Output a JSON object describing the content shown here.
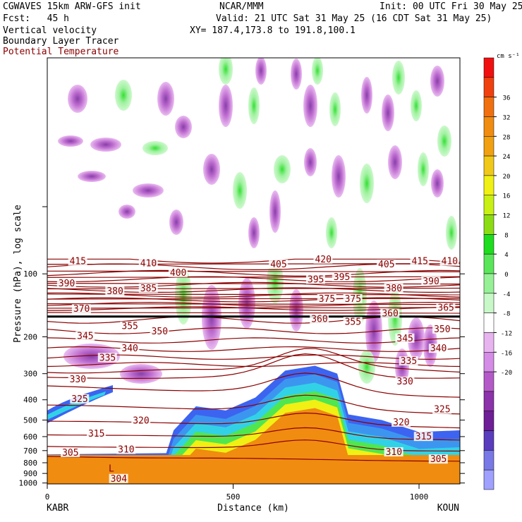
{
  "header": {
    "line1_left": "CGWAVES 15km ARW-GFS init",
    "line1_center": "NCAR/MMM",
    "line1_right": "Init: 00 UTC Fri 30 May 25",
    "line2_left": "Fcst:   45 h",
    "line2_right": "Valid: 21 UTC Sat 31 May 25 (16 CDT Sat 31 May 25)",
    "line3_left": "Vertical velocity",
    "line3_right": "XY= 187.4,173.8 to 191.8,100.1",
    "line4_left": "Boundary Layer Tracer",
    "line5_left": "Potential Temperature"
  },
  "colorbar": {
    "unit": "cm s⁻¹",
    "ticks": [
      "36",
      "32",
      "28",
      "24",
      "20",
      "16",
      "12",
      "8",
      "4",
      "0",
      "-4",
      "-8",
      "-12",
      "-16",
      "-20"
    ],
    "colors": [
      "#f01010",
      "#f04010",
      "#f07010",
      "#f08c10",
      "#f0a010",
      "#f0c818",
      "#f0f014",
      "#c8f014",
      "#8cdc14",
      "#1edc1e",
      "#5ae65a",
      "#96f096",
      "#c8f8c8",
      "#ffffff",
      "#e8b4f0",
      "#d48ce6",
      "#b45ac8",
      "#8c32aa",
      "#6e1e96",
      "#5a3cbe",
      "#7878e6",
      "#a0a0ff"
    ]
  },
  "chart_data": {
    "type": "heatmap",
    "title": "Vertical velocity / Boundary Layer Tracer / Potential Temperature",
    "xlabel": "Distance (km)",
    "ylabel": "Pressure (hPa), log scale",
    "x_ticks": [
      "0",
      "500",
      "1000"
    ],
    "xlim": [
      0,
      1110
    ],
    "y_ticks": [
      "100",
      "200",
      "300",
      "400",
      "500",
      "600",
      "700",
      "800",
      "900",
      "1000"
    ],
    "y_scale": "log",
    "endpoints": {
      "left": "KABR",
      "right": "KOUN"
    },
    "isentrope_labels": [
      {
        "v": "415",
        "x": 60,
        "p": 90
      },
      {
        "v": "410",
        "x": 250,
        "p": 92
      },
      {
        "v": "405",
        "x": 600,
        "p": 93
      },
      {
        "v": "420",
        "x": 720,
        "p": 88
      },
      {
        "v": "405",
        "x": 890,
        "p": 93
      },
      {
        "v": "415",
        "x": 980,
        "p": 90
      },
      {
        "v": "410",
        "x": 1060,
        "p": 90
      },
      {
        "v": "390",
        "x": 30,
        "p": 115
      },
      {
        "v": "400",
        "x": 330,
        "p": 102
      },
      {
        "v": "395",
        "x": 700,
        "p": 110
      },
      {
        "v": "395",
        "x": 770,
        "p": 107
      },
      {
        "v": "390",
        "x": 1010,
        "p": 112
      },
      {
        "v": "380",
        "x": 160,
        "p": 125
      },
      {
        "v": "385",
        "x": 250,
        "p": 121
      },
      {
        "v": "380",
        "x": 910,
        "p": 121
      },
      {
        "v": "370",
        "x": 70,
        "p": 152
      },
      {
        "v": "365",
        "x": 1050,
        "p": 150
      },
      {
        "v": "375",
        "x": 730,
        "p": 136
      },
      {
        "v": "375",
        "x": 800,
        "p": 136
      },
      {
        "v": "355",
        "x": 200,
        "p": 184
      },
      {
        "v": "350",
        "x": 280,
        "p": 195
      },
      {
        "v": "360",
        "x": 710,
        "p": 170
      },
      {
        "v": "355",
        "x": 800,
        "p": 175
      },
      {
        "v": "360",
        "x": 900,
        "p": 160
      },
      {
        "v": "350",
        "x": 1040,
        "p": 190
      },
      {
        "v": "345",
        "x": 80,
        "p": 205
      },
      {
        "v": "340",
        "x": 200,
        "p": 235
      },
      {
        "v": "345",
        "x": 940,
        "p": 210
      },
      {
        "v": "340",
        "x": 1030,
        "p": 235
      },
      {
        "v": "335",
        "x": 140,
        "p": 260
      },
      {
        "v": "335",
        "x": 950,
        "p": 270
      },
      {
        "v": "330",
        "x": 60,
        "p": 330
      },
      {
        "v": "330",
        "x": 940,
        "p": 338
      },
      {
        "v": "325",
        "x": 65,
        "p": 410
      },
      {
        "v": "325",
        "x": 1040,
        "p": 460
      },
      {
        "v": "320",
        "x": 230,
        "p": 520
      },
      {
        "v": "320",
        "x": 930,
        "p": 530
      },
      {
        "v": "315",
        "x": 110,
        "p": 600
      },
      {
        "v": "315",
        "x": 990,
        "p": 620
      },
      {
        "v": "310",
        "x": 190,
        "p": 715
      },
      {
        "v": "310",
        "x": 910,
        "p": 735
      },
      {
        "v": "305",
        "x": 40,
        "p": 740
      },
      {
        "v": "305",
        "x": 1030,
        "p": 795
      },
      {
        "v": "304",
        "x": 170,
        "p": 985
      }
    ],
    "low_marker": {
      "label": "L",
      "x": 165,
      "p": 880
    },
    "boundary_layer_tracer_top_hPa": [
      {
        "x": 0,
        "p": 730
      },
      {
        "x": 320,
        "p": 720
      },
      {
        "x": 340,
        "p": 560
      },
      {
        "x": 400,
        "p": 430
      },
      {
        "x": 480,
        "p": 450
      },
      {
        "x": 560,
        "p": 390
      },
      {
        "x": 640,
        "p": 290
      },
      {
        "x": 720,
        "p": 275
      },
      {
        "x": 780,
        "p": 300
      },
      {
        "x": 810,
        "p": 470
      },
      {
        "x": 900,
        "p": 500
      },
      {
        "x": 1000,
        "p": 570
      },
      {
        "x": 1110,
        "p": 560
      }
    ],
    "tropopause_hPa": 160,
    "grid": false
  }
}
